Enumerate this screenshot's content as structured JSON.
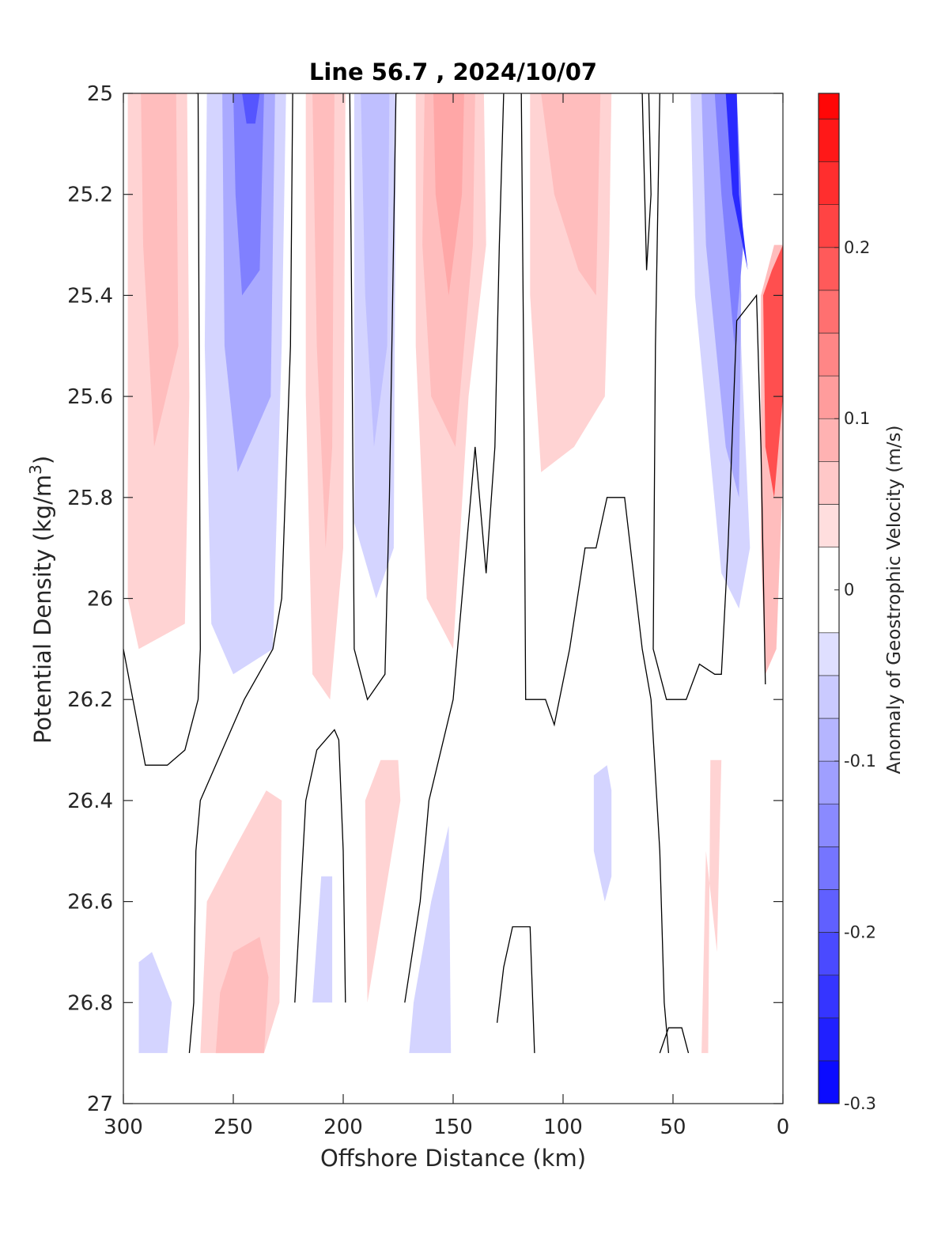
{
  "chart_data": {
    "type": "heatmap",
    "subtype": "filled-contour",
    "title": "Line 56.7 , 2024/10/07",
    "xlabel": "Offshore Distance (km)",
    "ylabel_main": "Potential Density (kg/m",
    "ylabel_sup": "3",
    "ylabel_close": ")",
    "xlim": [
      300,
      0
    ],
    "x_direction": "reversed",
    "ylim": [
      25,
      27
    ],
    "y_direction": "reversed",
    "xticks": [
      300,
      250,
      200,
      150,
      100,
      50,
      0
    ],
    "xtick_labels": [
      "300",
      "250",
      "200",
      "150",
      "100",
      "50",
      "0"
    ],
    "yticks": [
      25,
      25.2,
      25.4,
      25.6,
      25.8,
      26,
      26.2,
      26.4,
      26.6,
      26.8,
      27
    ],
    "ytick_labels": [
      "25",
      "25.2",
      "25.4",
      "25.6",
      "25.8",
      "26",
      "26.2",
      "26.4",
      "26.6",
      "26.8",
      "27"
    ],
    "colorbar": {
      "label": "Anomaly of Geostrophic Velocity (m/s)",
      "min": -0.3,
      "max": 0.29,
      "ticks": [
        -0.3,
        -0.2,
        -0.1,
        0,
        0.1,
        0.2
      ],
      "tick_labels": [
        "-0.3",
        "-0.2",
        "-0.1",
        "0",
        "0.1",
        "0.2"
      ],
      "levels": [
        -0.3,
        -0.275,
        -0.25,
        -0.225,
        -0.2,
        -0.175,
        -0.15,
        -0.125,
        -0.1,
        -0.075,
        -0.05,
        -0.025,
        0.025,
        0.05,
        0.075,
        0.1,
        0.125,
        0.15,
        0.175,
        0.2,
        0.225,
        0.25,
        0.275,
        0.29
      ],
      "colormap": "blue-white-red"
    },
    "regions": [
      {
        "name": "positive-band-290km",
        "value": 0.05,
        "points": [
          [
            295,
            25
          ],
          [
            271,
            25
          ],
          [
            270,
            25.6
          ],
          [
            272,
            26.05
          ],
          [
            293,
            26.1
          ],
          [
            298,
            26.0
          ],
          [
            298,
            25
          ]
        ]
      },
      {
        "name": "positive-core-290km",
        "value": 0.075,
        "points": [
          [
            292,
            25
          ],
          [
            276,
            25
          ],
          [
            275,
            25.5
          ],
          [
            286,
            25.7
          ],
          [
            291,
            25.3
          ]
        ]
      },
      {
        "name": "negative-band-245km",
        "value": -0.05,
        "points": [
          [
            262,
            25
          ],
          [
            226,
            25
          ],
          [
            228,
            25.5
          ],
          [
            232,
            26.1
          ],
          [
            250,
            26.15
          ],
          [
            260,
            26.05
          ],
          [
            263,
            25.5
          ]
        ]
      },
      {
        "name": "negative-mid-245km",
        "value": -0.1,
        "points": [
          [
            255,
            25
          ],
          [
            231,
            25
          ],
          [
            233,
            25.6
          ],
          [
            248,
            25.75
          ],
          [
            254,
            25.5
          ]
        ]
      },
      {
        "name": "negative-core-245km",
        "value": -0.15,
        "points": [
          [
            250,
            25
          ],
          [
            236,
            25
          ],
          [
            238,
            25.35
          ],
          [
            246,
            25.4
          ],
          [
            249,
            25.2
          ]
        ]
      },
      {
        "name": "negative-peak-245km",
        "value": -0.2,
        "points": [
          [
            246,
            25
          ],
          [
            238,
            25
          ],
          [
            240,
            25.06
          ],
          [
            244,
            25.06
          ]
        ]
      },
      {
        "name": "positive-band-207km",
        "value": 0.05,
        "points": [
          [
            217,
            25
          ],
          [
            199,
            25
          ],
          [
            200,
            25.9
          ],
          [
            206,
            26.2
          ],
          [
            214,
            26.15
          ],
          [
            217,
            25.6
          ]
        ]
      },
      {
        "name": "positive-core-207km",
        "value": 0.075,
        "points": [
          [
            214,
            25
          ],
          [
            204,
            25
          ],
          [
            205,
            25.7
          ],
          [
            208,
            25.9
          ],
          [
            212,
            25.5
          ]
        ]
      },
      {
        "name": "negative-band-187km",
        "value": -0.05,
        "points": [
          [
            195,
            25
          ],
          [
            176,
            25
          ],
          [
            177,
            25.9
          ],
          [
            185,
            26.0
          ],
          [
            195,
            25.85
          ]
        ]
      },
      {
        "name": "negative-core-187km",
        "value": -0.075,
        "points": [
          [
            192,
            25
          ],
          [
            179,
            25
          ],
          [
            180,
            25.5
          ],
          [
            186,
            25.7
          ],
          [
            190,
            25.4
          ]
        ]
      },
      {
        "name": "positive-band-155km",
        "value": 0.05,
        "points": [
          [
            167,
            25
          ],
          [
            136,
            25
          ],
          [
            135,
            25.3
          ],
          [
            143,
            25.6
          ],
          [
            150,
            26.1
          ],
          [
            162,
            26.0
          ],
          [
            167,
            25.5
          ]
        ]
      },
      {
        "name": "positive-mid-155km",
        "value": 0.075,
        "points": [
          [
            163,
            25
          ],
          [
            140,
            25
          ],
          [
            141,
            25.3
          ],
          [
            149,
            25.7
          ],
          [
            160,
            25.6
          ],
          [
            164,
            25.3
          ]
        ]
      },
      {
        "name": "positive-core-155km",
        "value": 0.1,
        "points": [
          [
            159,
            25
          ],
          [
            145,
            25
          ],
          [
            146,
            25.2
          ],
          [
            152,
            25.4
          ],
          [
            158,
            25.2
          ]
        ]
      },
      {
        "name": "positive-band-95km",
        "value": 0.05,
        "points": [
          [
            115,
            25
          ],
          [
            78,
            25
          ],
          [
            79,
            25.3
          ],
          [
            81,
            25.6
          ],
          [
            95,
            25.7
          ],
          [
            110,
            25.75
          ],
          [
            115,
            25.4
          ]
        ]
      },
      {
        "name": "positive-core-95km",
        "value": 0.075,
        "points": [
          [
            110,
            25
          ],
          [
            83,
            25
          ],
          [
            85,
            25.4
          ],
          [
            93,
            25.35
          ],
          [
            104,
            25.2
          ]
        ]
      },
      {
        "name": "negative-coastal-band",
        "value": -0.05,
        "points": [
          [
            42,
            25
          ],
          [
            21,
            25
          ],
          [
            19,
            25.5
          ],
          [
            15,
            25.9
          ],
          [
            20,
            26.02
          ],
          [
            28,
            25.95
          ],
          [
            40,
            25.4
          ]
        ]
      },
      {
        "name": "negative-coastal-mid",
        "value": -0.1,
        "points": [
          [
            37,
            25
          ],
          [
            21,
            25
          ],
          [
            19,
            25.4
          ],
          [
            20,
            25.8
          ],
          [
            26,
            25.7
          ],
          [
            35,
            25.3
          ]
        ]
      },
      {
        "name": "negative-coastal-core",
        "value": -0.15,
        "points": [
          [
            31,
            25
          ],
          [
            21,
            25
          ],
          [
            18,
            25.3
          ],
          [
            22,
            25.5
          ],
          [
            28,
            25.2
          ]
        ]
      },
      {
        "name": "negative-coastal-peak",
        "value": -0.25,
        "points": [
          [
            26,
            25
          ],
          [
            21,
            25
          ],
          [
            20,
            25.2
          ],
          [
            16,
            25.35
          ],
          [
            23,
            25.2
          ]
        ]
      },
      {
        "name": "positive-nearshore-band",
        "value": 0.075,
        "points": [
          [
            10,
            25.4
          ],
          [
            4,
            25.3
          ],
          [
            0,
            25.3
          ],
          [
            0,
            25.75
          ],
          [
            3,
            26.1
          ],
          [
            8,
            26.15
          ],
          [
            10,
            25.9
          ]
        ]
      },
      {
        "name": "positive-nearshore-core",
        "value": 0.2,
        "points": [
          [
            9,
            25.4
          ],
          [
            5,
            25.35
          ],
          [
            0,
            25.3
          ],
          [
            0,
            25.6
          ],
          [
            4,
            25.8
          ],
          [
            8,
            25.7
          ]
        ]
      },
      {
        "name": "negative-deep-105km",
        "value": -0.05,
        "points": [
          [
            86,
            26.35
          ],
          [
            80,
            26.33
          ],
          [
            78,
            26.38
          ],
          [
            78,
            26.55
          ],
          [
            81,
            26.6
          ],
          [
            86,
            26.5
          ]
        ]
      },
      {
        "name": "positive-deep-235km",
        "value": 0.05,
        "points": [
          [
            265,
            26.9
          ],
          [
            236,
            26.9
          ],
          [
            229,
            26.8
          ],
          [
            228,
            26.4
          ],
          [
            235,
            26.38
          ],
          [
            250,
            26.5
          ],
          [
            262,
            26.6
          ]
        ]
      },
      {
        "name": "positive-deep-235km-core",
        "value": 0.075,
        "points": [
          [
            258,
            26.9
          ],
          [
            236,
            26.9
          ],
          [
            234,
            26.75
          ],
          [
            238,
            26.67
          ],
          [
            250,
            26.7
          ],
          [
            256,
            26.78
          ]
        ]
      },
      {
        "name": "negative-deep-210km",
        "value": -0.05,
        "points": [
          [
            214,
            26.8
          ],
          [
            205,
            26.8
          ],
          [
            205,
            26.55
          ],
          [
            210,
            26.55
          ]
        ]
      },
      {
        "name": "positive-deep-180km",
        "value": 0.05,
        "points": [
          [
            189,
            26.8
          ],
          [
            174,
            26.4
          ],
          [
            175,
            26.32
          ],
          [
            183,
            26.32
          ],
          [
            190,
            26.4
          ]
        ]
      },
      {
        "name": "negative-deep-155km",
        "value": -0.05,
        "points": [
          [
            170,
            26.9
          ],
          [
            151,
            26.9
          ],
          [
            152,
            26.45
          ],
          [
            160,
            26.6
          ],
          [
            168,
            26.8
          ]
        ]
      },
      {
        "name": "negative-deep-295km",
        "value": -0.05,
        "points": [
          [
            293,
            26.9
          ],
          [
            280,
            26.9
          ],
          [
            278,
            26.8
          ],
          [
            287,
            26.7
          ],
          [
            293,
            26.72
          ]
        ]
      },
      {
        "name": "positive-deep-35km",
        "value": 0.05,
        "points": [
          [
            37,
            26.9
          ],
          [
            34,
            26.9
          ],
          [
            33,
            26.32
          ],
          [
            28,
            26.32
          ],
          [
            30,
            26.7
          ],
          [
            35,
            26.5
          ]
        ]
      }
    ],
    "zero_contours": [
      [
        [
          300,
          26.1
        ],
        [
          290,
          26.33
        ],
        [
          280,
          26.33
        ],
        [
          272,
          26.3
        ],
        [
          266,
          26.2
        ],
        [
          265,
          26.1
        ],
        [
          266,
          25
        ],
        [
          267,
          25
        ]
      ],
      [
        [
          270,
          26.9
        ],
        [
          268,
          26.8
        ],
        [
          267,
          26.5
        ],
        [
          265,
          26.4
        ],
        [
          260,
          26.35
        ],
        [
          245,
          26.2
        ],
        [
          232,
          26.1
        ],
        [
          228,
          26.0
        ],
        [
          224,
          25.5
        ],
        [
          223,
          25
        ]
      ],
      [
        [
          222,
          26.8
        ],
        [
          217,
          26.4
        ],
        [
          212,
          26.3
        ],
        [
          204,
          26.26
        ],
        [
          202,
          26.28
        ],
        [
          200,
          26.5
        ],
        [
          199,
          26.8
        ]
      ],
      [
        [
          197,
          25
        ],
        [
          196,
          25.5
        ],
        [
          195,
          26.1
        ],
        [
          189,
          26.2
        ],
        [
          181,
          26.15
        ],
        [
          179,
          25.8
        ],
        [
          176,
          25
        ],
        [
          175,
          25
        ]
      ],
      [
        [
          172,
          26.8
        ],
        [
          165,
          26.6
        ],
        [
          161,
          26.4
        ],
        [
          150,
          26.2
        ],
        [
          140,
          25.7
        ],
        [
          135,
          25.95
        ],
        [
          131,
          25.7
        ],
        [
          129,
          25.3
        ],
        [
          127,
          25
        ]
      ],
      [
        [
          119,
          25
        ],
        [
          118,
          25.5
        ],
        [
          117,
          26.2
        ],
        [
          108,
          26.2
        ],
        [
          104,
          26.25
        ],
        [
          97,
          26.1
        ],
        [
          90,
          25.9
        ],
        [
          85,
          25.9
        ],
        [
          80,
          25.8
        ],
        [
          72,
          25.8
        ],
        [
          64,
          26.1
        ],
        [
          60,
          26.2
        ],
        [
          56,
          26.5
        ],
        [
          54,
          26.8
        ],
        [
          52,
          26.9
        ]
      ],
      [
        [
          61,
          25
        ],
        [
          60,
          25.2
        ],
        [
          62,
          25.35
        ],
        [
          64,
          25
        ],
        [
          65,
          25
        ]
      ],
      [
        [
          43,
          26.9
        ],
        [
          46,
          26.85
        ],
        [
          52,
          26.85
        ],
        [
          56,
          26.9
        ]
      ],
      [
        [
          130,
          26.84
        ],
        [
          127,
          26.73
        ],
        [
          123,
          26.65
        ],
        [
          115,
          26.65
        ],
        [
          113,
          26.9
        ]
      ],
      [
        [
          56,
          25
        ],
        [
          58,
          25.5
        ],
        [
          59,
          26.1
        ],
        [
          53,
          26.2
        ],
        [
          44,
          26.2
        ],
        [
          38,
          26.13
        ],
        [
          31,
          26.15
        ],
        [
          28,
          26.15
        ],
        [
          25,
          25.9
        ],
        [
          21,
          25.45
        ],
        [
          12,
          25.4
        ],
        [
          10,
          25.7
        ],
        [
          8,
          26.17
        ]
      ]
    ]
  }
}
